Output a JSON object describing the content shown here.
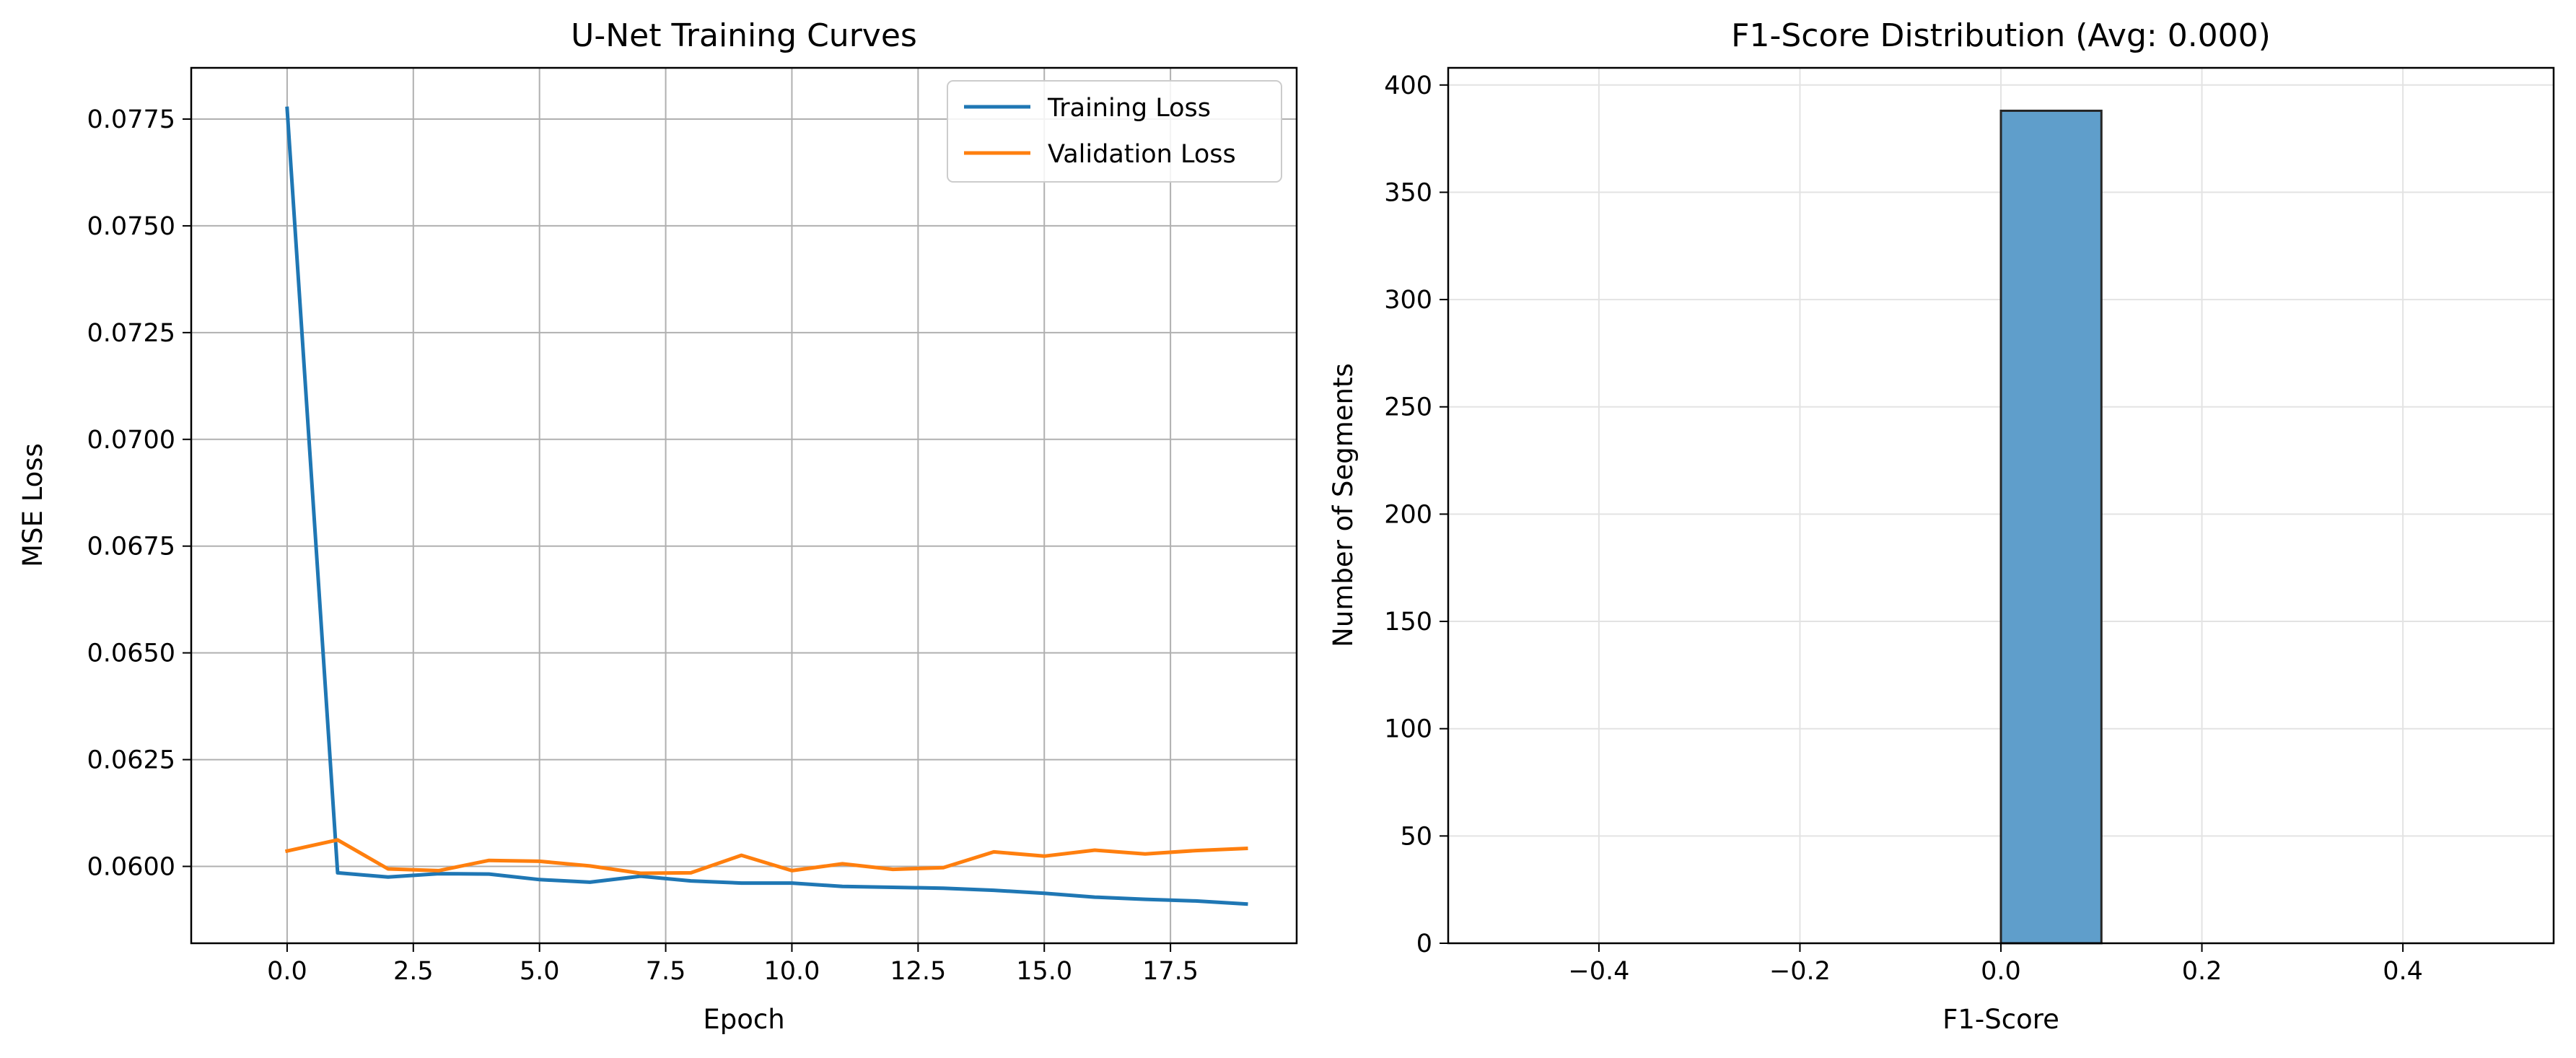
{
  "chart_data": [
    {
      "type": "line",
      "title": "U-Net Training Curves",
      "xlabel": "Epoch",
      "ylabel": "MSE Loss",
      "xlim": [
        -1.9,
        20.0
      ],
      "ylim": [
        0.0582,
        0.0787
      ],
      "x_ticks": [
        0.0,
        2.5,
        5.0,
        7.5,
        10.0,
        12.5,
        15.0,
        17.5
      ],
      "x_tick_labels": [
        "0.0",
        "2.5",
        "5.0",
        "7.5",
        "10.0",
        "12.5",
        "15.0",
        "17.5"
      ],
      "y_ticks": [
        0.06,
        0.0625,
        0.065,
        0.0675,
        0.07,
        0.0725,
        0.075,
        0.0775
      ],
      "y_tick_labels": [
        "0.0600",
        "0.0625",
        "0.0650",
        "0.0675",
        "0.0700",
        "0.0725",
        "0.0750",
        "0.0775"
      ],
      "grid": true,
      "legend_position": "upper right",
      "x": [
        0,
        1,
        2,
        3,
        4,
        5,
        6,
        7,
        8,
        9,
        10,
        11,
        12,
        13,
        14,
        15,
        16,
        17,
        18,
        19
      ],
      "series": [
        {
          "name": "Training Loss",
          "color": "#1f77b4",
          "values": [
            0.07775,
            0.05985,
            0.05975,
            0.05983,
            0.05982,
            0.05969,
            0.05963,
            0.05977,
            0.05966,
            0.05961,
            0.05961,
            0.05953,
            0.05951,
            0.05949,
            0.05944,
            0.05937,
            0.05928,
            0.05923,
            0.05919,
            0.05912
          ]
        },
        {
          "name": "Validation Loss",
          "color": "#ff7f0e",
          "values": [
            0.06036,
            0.06062,
            0.05994,
            0.0599,
            0.06014,
            0.06012,
            0.06001,
            0.05984,
            0.05985,
            0.06026,
            0.0599,
            0.06006,
            0.05993,
            0.05997,
            0.06034,
            0.06024,
            0.06038,
            0.06029,
            0.06037,
            0.06042
          ]
        }
      ]
    },
    {
      "type": "bar",
      "title": "F1-Score Distribution (Avg: 0.000)",
      "xlabel": "F1-Score",
      "ylabel": "Number of Segments",
      "xlim": [
        -0.55,
        0.55
      ],
      "ylim": [
        0,
        408
      ],
      "x_ticks": [
        -0.4,
        -0.2,
        0.0,
        0.2,
        0.4
      ],
      "x_tick_labels": [
        "−0.4",
        "−0.2",
        "0.0",
        "0.2",
        "0.4"
      ],
      "y_ticks": [
        0,
        50,
        100,
        150,
        200,
        250,
        300,
        350,
        400
      ],
      "y_tick_labels": [
        "0",
        "50",
        "100",
        "150",
        "200",
        "250",
        "300",
        "350",
        "400"
      ],
      "grid": true,
      "bar_color": "#5f9ecb",
      "bar_edge_color": "#262626",
      "bins": [
        {
          "start": -0.5,
          "end": -0.4,
          "count": 0
        },
        {
          "start": -0.4,
          "end": -0.3,
          "count": 0
        },
        {
          "start": -0.3,
          "end": -0.2,
          "count": 0
        },
        {
          "start": -0.2,
          "end": -0.1,
          "count": 0
        },
        {
          "start": -0.1,
          "end": 0.0,
          "count": 0
        },
        {
          "start": 0.0,
          "end": 0.1,
          "count": 388
        },
        {
          "start": 0.1,
          "end": 0.2,
          "count": 0
        },
        {
          "start": 0.2,
          "end": 0.3,
          "count": 0
        },
        {
          "start": 0.3,
          "end": 0.4,
          "count": 0
        },
        {
          "start": 0.4,
          "end": 0.5,
          "count": 0
        }
      ]
    }
  ]
}
